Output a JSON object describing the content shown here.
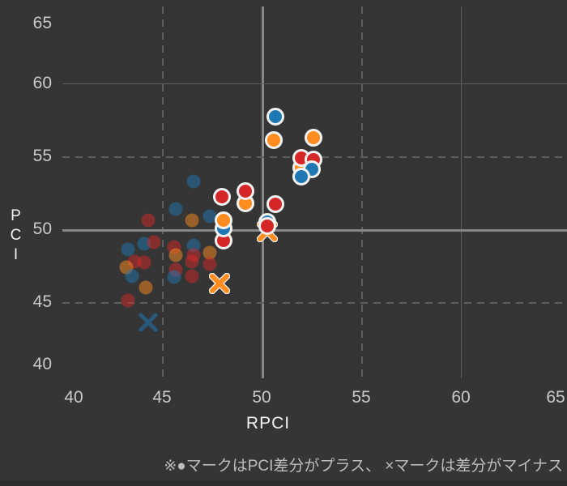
{
  "theme": {
    "background": "#353535",
    "grid_color": "#5e5e5e",
    "reference_line_color": "#868686",
    "tick_label_color": "#c9c9c9",
    "axis_title_color": "#f2f2f2",
    "caption_color": "#bdbdbd"
  },
  "chart_data": {
    "type": "scatter",
    "title": "",
    "xlabel": "RPCI",
    "ylabel": "PCI",
    "xlim": [
      40,
      65
    ],
    "ylim": [
      40,
      65
    ],
    "xticks": [
      40,
      45,
      50,
      55,
      60,
      65
    ],
    "yticks": [
      40,
      45,
      50,
      55,
      60,
      65
    ],
    "grid": {
      "dashed_lines": [
        45,
        55
      ],
      "solid_lines": [
        60
      ],
      "reference_lines": [
        50
      ],
      "legend_position": "none"
    },
    "colors": {
      "blue": "#1f77b4",
      "orange": "#ff8c1e",
      "red": "#d62728",
      "ring": "#f2f2f2"
    },
    "note": "※●マークはPCI差分がプラス、 ×マークは差分がマイナス",
    "points": [
      {
        "x": 43.3,
        "y": 48.6,
        "color": "blue",
        "marker": "circle",
        "emphasized": false
      },
      {
        "x": 44.1,
        "y": 49.0,
        "color": "blue",
        "marker": "circle",
        "emphasized": false
      },
      {
        "x": 44.6,
        "y": 49.1,
        "color": "red",
        "marker": "circle",
        "emphasized": false
      },
      {
        "x": 43.6,
        "y": 47.8,
        "color": "red",
        "marker": "circle",
        "emphasized": false
      },
      {
        "x": 44.1,
        "y": 47.7,
        "color": "red",
        "marker": "circle",
        "emphasized": false
      },
      {
        "x": 43.2,
        "y": 47.4,
        "color": "orange",
        "marker": "circle",
        "emphasized": false
      },
      {
        "x": 43.5,
        "y": 46.8,
        "color": "blue",
        "marker": "circle",
        "emphasized": false
      },
      {
        "x": 44.2,
        "y": 46.0,
        "color": "orange",
        "marker": "circle",
        "emphasized": false
      },
      {
        "x": 43.3,
        "y": 45.1,
        "color": "red",
        "marker": "circle",
        "emphasized": false
      },
      {
        "x": 45.6,
        "y": 48.8,
        "color": "red",
        "marker": "circle",
        "emphasized": false
      },
      {
        "x": 45.7,
        "y": 48.2,
        "color": "orange",
        "marker": "circle",
        "emphasized": false
      },
      {
        "x": 46.6,
        "y": 48.9,
        "color": "blue",
        "marker": "circle",
        "emphasized": false
      },
      {
        "x": 46.6,
        "y": 48.2,
        "color": "red",
        "marker": "circle",
        "emphasized": false
      },
      {
        "x": 47.4,
        "y": 48.4,
        "color": "orange",
        "marker": "circle",
        "emphasized": false
      },
      {
        "x": 46.5,
        "y": 47.8,
        "color": "red",
        "marker": "circle",
        "emphasized": false
      },
      {
        "x": 47.4,
        "y": 47.6,
        "color": "red",
        "marker": "circle",
        "emphasized": false
      },
      {
        "x": 45.7,
        "y": 47.2,
        "color": "red",
        "marker": "circle",
        "emphasized": false
      },
      {
        "x": 45.6,
        "y": 46.7,
        "color": "blue",
        "marker": "circle",
        "emphasized": false
      },
      {
        "x": 46.5,
        "y": 46.8,
        "color": "red",
        "marker": "circle",
        "emphasized": false
      },
      {
        "x": 46.6,
        "y": 53.3,
        "color": "blue",
        "marker": "circle",
        "emphasized": false
      },
      {
        "x": 45.7,
        "y": 51.4,
        "color": "blue",
        "marker": "circle",
        "emphasized": false
      },
      {
        "x": 44.3,
        "y": 50.6,
        "color": "red",
        "marker": "circle",
        "emphasized": false
      },
      {
        "x": 46.5,
        "y": 50.6,
        "color": "orange",
        "marker": "circle",
        "emphasized": false
      },
      {
        "x": 47.4,
        "y": 50.9,
        "color": "blue",
        "marker": "circle",
        "emphasized": false
      },
      {
        "x": 44.3,
        "y": 43.6,
        "color": "blue",
        "marker": "x",
        "emphasized": false
      },
      {
        "x": 47.9,
        "y": 46.3,
        "color": "orange",
        "marker": "x",
        "emphasized": true
      },
      {
        "x": 50.3,
        "y": 49.85,
        "color": "orange",
        "marker": "x",
        "emphasized": true
      },
      {
        "x": 48.1,
        "y": 49.2,
        "color": "red",
        "marker": "circle",
        "emphasized": true
      },
      {
        "x": 48.1,
        "y": 50.05,
        "color": "blue",
        "marker": "circle",
        "emphasized": true
      },
      {
        "x": 48.1,
        "y": 50.6,
        "color": "orange",
        "marker": "circle",
        "emphasized": true
      },
      {
        "x": 48.0,
        "y": 52.2,
        "color": "red",
        "marker": "circle",
        "emphasized": true
      },
      {
        "x": 49.2,
        "y": 51.8,
        "color": "orange",
        "marker": "circle",
        "emphasized": true
      },
      {
        "x": 49.2,
        "y": 52.6,
        "color": "red",
        "marker": "circle",
        "emphasized": true
      },
      {
        "x": 50.7,
        "y": 51.7,
        "color": "red",
        "marker": "circle",
        "emphasized": true
      },
      {
        "x": 50.3,
        "y": 50.5,
        "color": "blue",
        "marker": "circle",
        "emphasized": true
      },
      {
        "x": 50.3,
        "y": 50.2,
        "color": "red",
        "marker": "circle",
        "emphasized": true
      },
      {
        "x": 50.6,
        "y": 56.1,
        "color": "orange",
        "marker": "circle",
        "emphasized": true
      },
      {
        "x": 50.7,
        "y": 57.7,
        "color": "blue",
        "marker": "circle",
        "emphasized": true
      },
      {
        "x": 52.6,
        "y": 56.3,
        "color": "orange",
        "marker": "circle",
        "emphasized": true
      },
      {
        "x": 52.0,
        "y": 54.2,
        "color": "orange",
        "marker": "circle",
        "emphasized": true
      },
      {
        "x": 52.0,
        "y": 54.9,
        "color": "red",
        "marker": "circle",
        "emphasized": true
      },
      {
        "x": 52.6,
        "y": 54.8,
        "color": "red",
        "marker": "circle",
        "emphasized": true
      },
      {
        "x": 52.5,
        "y": 54.1,
        "color": "blue",
        "marker": "circle",
        "emphasized": true
      },
      {
        "x": 52.0,
        "y": 53.6,
        "color": "blue",
        "marker": "circle",
        "emphasized": true
      }
    ]
  }
}
